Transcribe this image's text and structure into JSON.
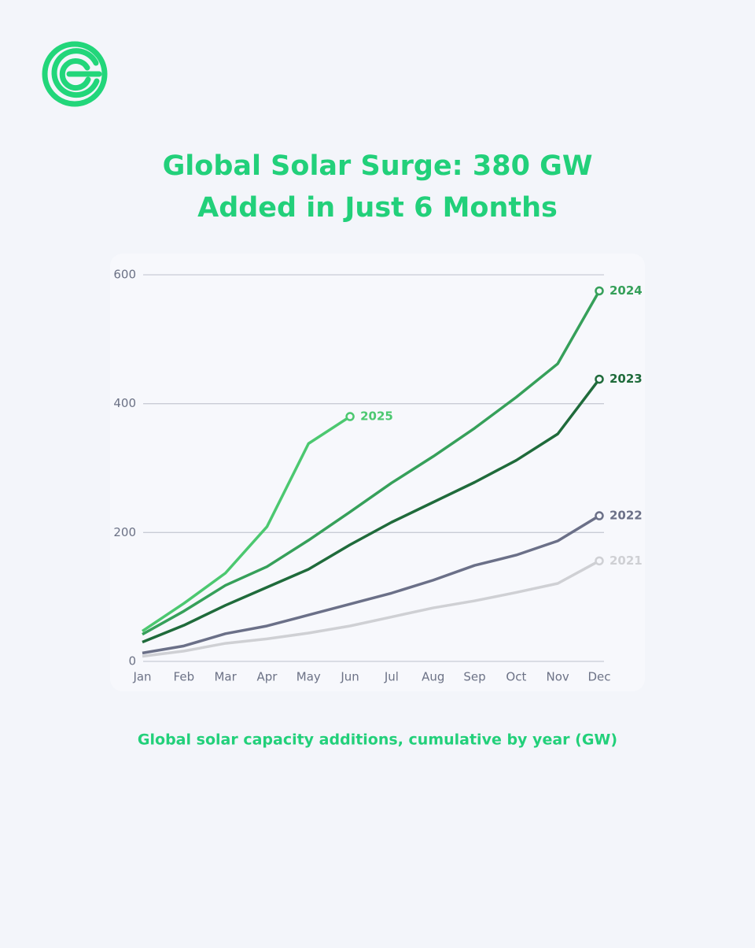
{
  "chart_data": {
    "type": "line",
    "title": "Global Solar Surge: 380 GW",
    "title_line2": "Added in Just 6 Months",
    "subtitle": "Global solar capacity additions, cumulative by year (GW)",
    "categories": [
      "Jan",
      "Feb",
      "Mar",
      "Apr",
      "May",
      "Jun",
      "Jul",
      "Aug",
      "Sep",
      "Oct",
      "Nov",
      "Dec"
    ],
    "ylim": [
      0,
      600
    ],
    "yticks": [
      0,
      200,
      400,
      600
    ],
    "grid": true,
    "series": [
      {
        "name": "2021",
        "color": "#cfd0d4",
        "values": [
          8,
          16,
          28,
          35,
          44,
          55,
          69,
          83,
          94,
          107,
          121,
          156
        ]
      },
      {
        "name": "2022",
        "color": "#6b7088",
        "values": [
          13,
          24,
          43,
          55,
          72,
          89,
          106,
          126,
          149,
          165,
          187,
          226
        ]
      },
      {
        "name": "2023",
        "color": "#1f6b3b",
        "values": [
          30,
          56,
          87,
          115,
          143,
          181,
          216,
          247,
          278,
          312,
          353,
          438
        ]
      },
      {
        "name": "2024",
        "color": "#36a05a",
        "values": [
          42,
          78,
          118,
          147,
          188,
          232,
          277,
          318,
          362,
          410,
          462,
          575
        ]
      },
      {
        "name": "2025",
        "color": "#4cc870",
        "values": [
          47,
          90,
          137,
          209,
          338,
          380,
          null,
          null,
          null,
          null,
          null,
          null
        ]
      }
    ]
  }
}
